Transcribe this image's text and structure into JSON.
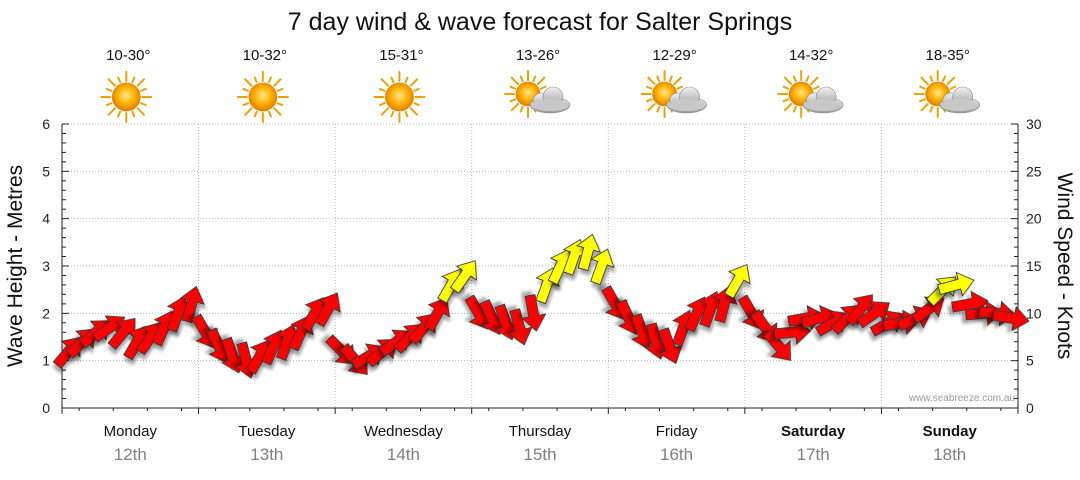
{
  "chart_data": {
    "type": "line",
    "title": "7 day wind & wave forecast for Salter Springs",
    "ylabel_left": "Wave Height - Metres",
    "ylabel_right": "Wind Speed - Knots",
    "ylim_left": [
      0,
      6
    ],
    "ylim_right": [
      0,
      30
    ],
    "yticks_left": [
      "0",
      "1",
      "2",
      "3",
      "4",
      "5",
      "6"
    ],
    "yticks_right": [
      "0",
      "5",
      "10",
      "15",
      "20",
      "25",
      "30"
    ],
    "grid": true,
    "watermark": "www.seabreeze.com.au",
    "days": [
      {
        "name": "Monday",
        "date": "12th",
        "temp": "10-30°",
        "icon": "sun-icon",
        "bold": false
      },
      {
        "name": "Tuesday",
        "date": "13th",
        "temp": "10-32°",
        "icon": "sun-icon",
        "bold": false
      },
      {
        "name": "Wednesday",
        "date": "14th",
        "temp": "15-31°",
        "icon": "sun-icon",
        "bold": false
      },
      {
        "name": "Thursday",
        "date": "15th",
        "temp": "13-26°",
        "icon": "partly-cloudy-icon",
        "bold": false
      },
      {
        "name": "Friday",
        "date": "16th",
        "temp": "12-29°",
        "icon": "partly-cloudy-icon",
        "bold": false
      },
      {
        "name": "Saturday",
        "date": "17th",
        "temp": "14-32°",
        "icon": "partly-cloudy-icon",
        "bold": true
      },
      {
        "name": "Sunday",
        "date": "18th",
        "temp": "18-35°",
        "icon": "partly-cloudy-icon",
        "bold": true
      }
    ],
    "wind_series": {
      "name": "Wind",
      "colors": {
        "light": "#ffff00",
        "strong": "#ff0000",
        "outline": "#333333"
      },
      "points_per_day": 10,
      "speed_knots": [
        6.0,
        7.0,
        8.0,
        8.5,
        8.0,
        7.0,
        7.5,
        8.5,
        10.0,
        11.0,
        8.0,
        6.5,
        5.5,
        5.0,
        5.5,
        6.5,
        7.0,
        8.0,
        10.0,
        10.5,
        6.0,
        5.0,
        5.5,
        6.0,
        7.0,
        7.5,
        8.5,
        10.0,
        13.0,
        14.0,
        10.0,
        9.5,
        9.0,
        8.5,
        10.0,
        13.0,
        15.0,
        16.0,
        16.5,
        15.0,
        11.0,
        9.5,
        8.0,
        7.0,
        6.5,
        8.5,
        10.0,
        10.5,
        11.0,
        13.5,
        10.0,
        8.5,
        6.5,
        8.0,
        9.5,
        9.5,
        9.0,
        9.5,
        10.5,
        10.0,
        9.0,
        9.0,
        9.5,
        10.5,
        12.5,
        13.0,
        11.0,
        10.0,
        10.0,
        9.5
      ],
      "direction_deg": [
        40,
        45,
        50,
        55,
        40,
        30,
        35,
        25,
        20,
        15,
        150,
        155,
        160,
        165,
        30,
        25,
        20,
        25,
        30,
        30,
        135,
        140,
        60,
        50,
        55,
        45,
        40,
        30,
        30,
        35,
        150,
        155,
        160,
        165,
        170,
        20,
        25,
        20,
        15,
        20,
        150,
        155,
        160,
        165,
        160,
        20,
        25,
        20,
        15,
        30,
        150,
        145,
        140,
        85,
        80,
        75,
        60,
        45,
        40,
        55,
        60,
        80,
        65,
        55,
        45,
        75,
        80,
        85,
        95,
        100
      ]
    }
  }
}
